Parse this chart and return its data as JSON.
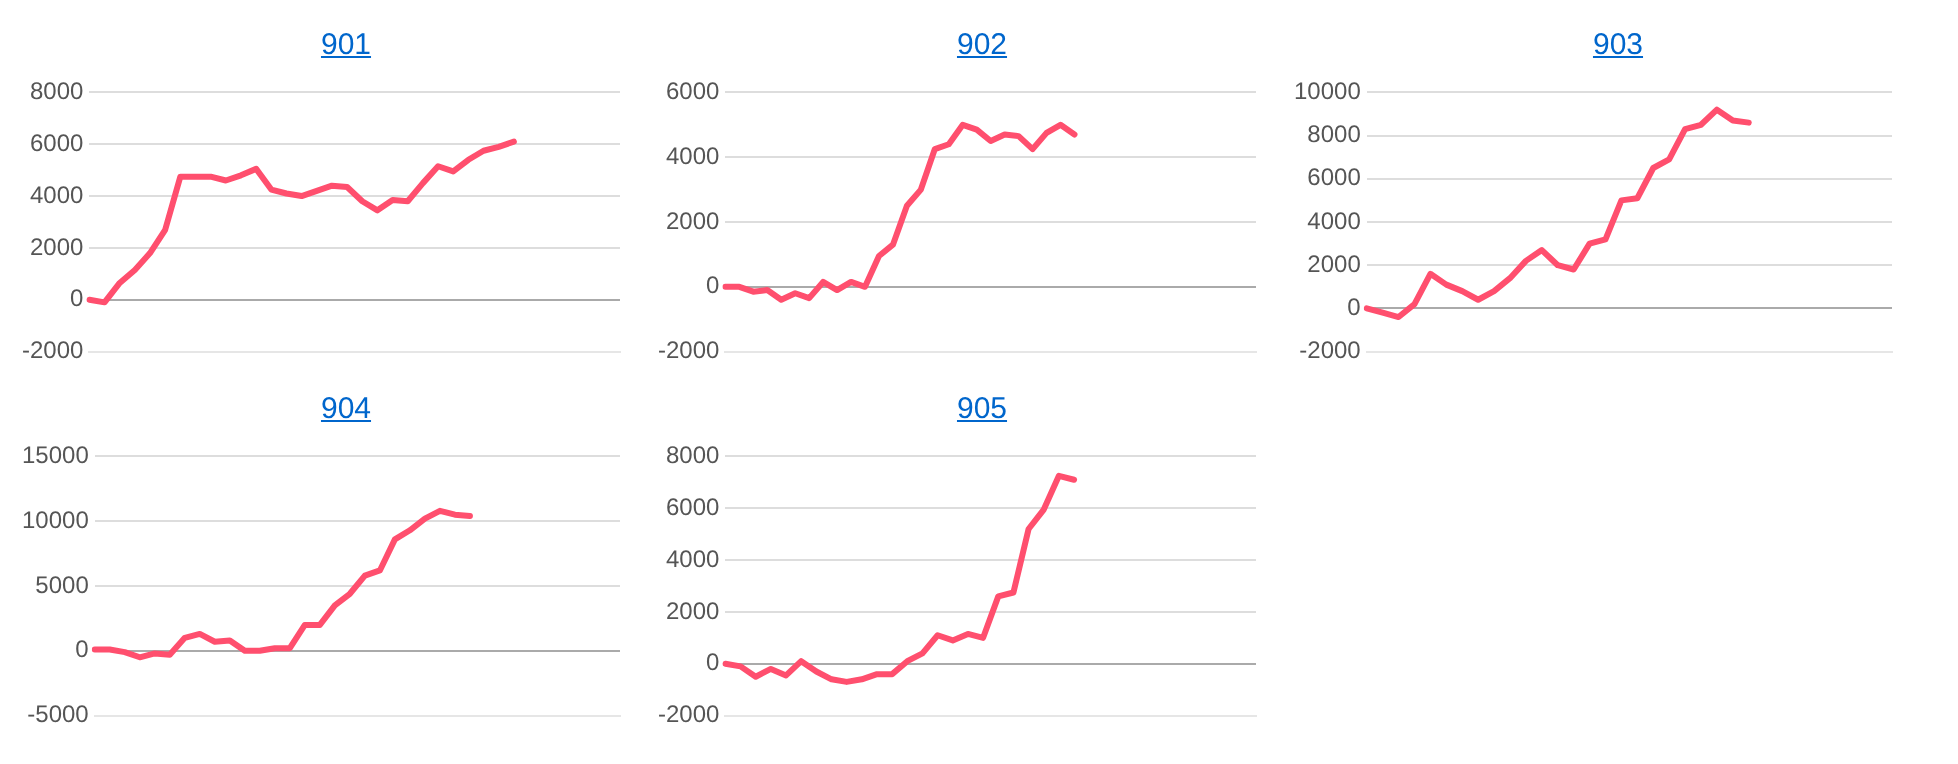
{
  "chart_data": [
    {
      "type": "line",
      "title": "901",
      "categories": [
        null,
        null,
        null,
        null,
        null,
        null,
        null,
        null,
        null,
        null,
        null,
        null,
        null,
        null,
        null,
        null,
        null,
        null,
        null,
        null,
        null,
        null,
        null,
        null,
        null,
        null,
        null,
        null,
        null,
        null,
        null,
        null,
        null,
        null,
        null,
        null
      ],
      "series": [
        {
          "color": "#ff4f6e",
          "values": [
            0,
            -100,
            650,
            1150,
            1800,
            2700,
            4750,
            4750,
            4750,
            4600,
            4800,
            5050,
            4250,
            4100,
            4000,
            4200,
            4400,
            4350,
            3800,
            3450,
            3850,
            3800,
            4500,
            5150,
            4950,
            5400,
            5750,
            5900,
            6100,
            null,
            null,
            null,
            null,
            null,
            null,
            null
          ]
        }
      ],
      "ylim": [
        -2000,
        8000
      ],
      "yticks": [
        -2000,
        0,
        2000,
        4000,
        6000,
        8000
      ],
      "grid": "y",
      "tick_labels": "y",
      "marker": "none"
    },
    {
      "type": "line",
      "title": "902",
      "categories": [
        null,
        null,
        null,
        null,
        null,
        null,
        null,
        null,
        null,
        null,
        null,
        null,
        null,
        null,
        null,
        null,
        null,
        null,
        null,
        null,
        null,
        null,
        null,
        null,
        null,
        null,
        null,
        null,
        null,
        null,
        null,
        null,
        null,
        null,
        null,
        null,
        null,
        null,
        null
      ],
      "series": [
        {
          "color": "#ff4f6e",
          "values": [
            0,
            0,
            -150,
            -100,
            -400,
            -200,
            -350,
            150,
            -100,
            150,
            0,
            950,
            1300,
            2500,
            3000,
            4250,
            4400,
            5000,
            4850,
            4500,
            4700,
            4650,
            4250,
            4750,
            5000,
            4700,
            null,
            null,
            null,
            null,
            null,
            null,
            null,
            null,
            null,
            null,
            null,
            null,
            null
          ]
        }
      ],
      "ylim": [
        -2000,
        6000
      ],
      "yticks": [
        -2000,
        0,
        2000,
        4000,
        6000
      ],
      "grid": "y",
      "tick_labels": "y",
      "marker": "none"
    },
    {
      "type": "line",
      "title": "903",
      "categories": [
        null,
        null,
        null,
        null,
        null,
        null,
        null,
        null,
        null,
        null,
        null,
        null,
        null,
        null,
        null,
        null,
        null,
        null,
        null,
        null,
        null,
        null,
        null,
        null,
        null,
        null,
        null,
        null,
        null,
        null,
        null,
        null,
        null,
        null
      ],
      "series": [
        {
          "color": "#ff4f6e",
          "values": [
            0,
            -200,
            -400,
            200,
            1600,
            1100,
            800,
            400,
            800,
            1400,
            2200,
            2700,
            2000,
            1800,
            3000,
            3200,
            5000,
            5100,
            6500,
            6900,
            8300,
            8500,
            9200,
            8700,
            8600,
            null,
            null,
            null,
            null,
            null,
            null,
            null,
            null,
            null
          ]
        }
      ],
      "ylim": [
        -2000,
        10000
      ],
      "yticks": [
        -2000,
        0,
        2000,
        4000,
        6000,
        8000,
        10000
      ],
      "grid": "y",
      "tick_labels": "y",
      "marker": "none"
    },
    {
      "type": "line",
      "title": "904",
      "categories": [
        null,
        null,
        null,
        null,
        null,
        null,
        null,
        null,
        null,
        null,
        null,
        null,
        null,
        null,
        null,
        null,
        null,
        null,
        null,
        null,
        null,
        null,
        null,
        null,
        null,
        null,
        null,
        null,
        null,
        null,
        null,
        null,
        null,
        null,
        null,
        null
      ],
      "series": [
        {
          "color": "#ff4f6e",
          "values": [
            100,
            100,
            -100,
            -500,
            -200,
            -300,
            1000,
            1300,
            700,
            800,
            0,
            0,
            200,
            200,
            2000,
            2000,
            3500,
            4400,
            5800,
            6200,
            8600,
            9300,
            10200,
            10800,
            10500,
            10400,
            null,
            null,
            null,
            null,
            null,
            null,
            null,
            null,
            null,
            null
          ]
        }
      ],
      "ylim": [
        -5000,
        15000
      ],
      "yticks": [
        -5000,
        0,
        5000,
        10000,
        15000
      ],
      "grid": "y",
      "tick_labels": "y",
      "marker": "none"
    },
    {
      "type": "line",
      "title": "905",
      "categories": [
        null,
        null,
        null,
        null,
        null,
        null,
        null,
        null,
        null,
        null,
        null,
        null,
        null,
        null,
        null,
        null,
        null,
        null,
        null,
        null,
        null,
        null,
        null,
        null,
        null,
        null,
        null,
        null,
        null,
        null,
        null,
        null,
        null,
        null,
        null,
        null
      ],
      "series": [
        {
          "color": "#ff4f6e",
          "values": [
            0,
            -100,
            -500,
            -200,
            -450,
            100,
            -300,
            -600,
            -700,
            -600,
            -400,
            -400,
            100,
            400,
            1100,
            900,
            1150,
            1000,
            2600,
            2750,
            5200,
            5950,
            7250,
            7100,
            null,
            null,
            null,
            null,
            null,
            null,
            null,
            null,
            null,
            null,
            null,
            null
          ]
        }
      ],
      "ylim": [
        -2000,
        8000
      ],
      "yticks": [
        -2000,
        0,
        2000,
        4000,
        6000,
        8000
      ],
      "grid": "y",
      "tick_labels": "y",
      "marker": "none"
    }
  ]
}
